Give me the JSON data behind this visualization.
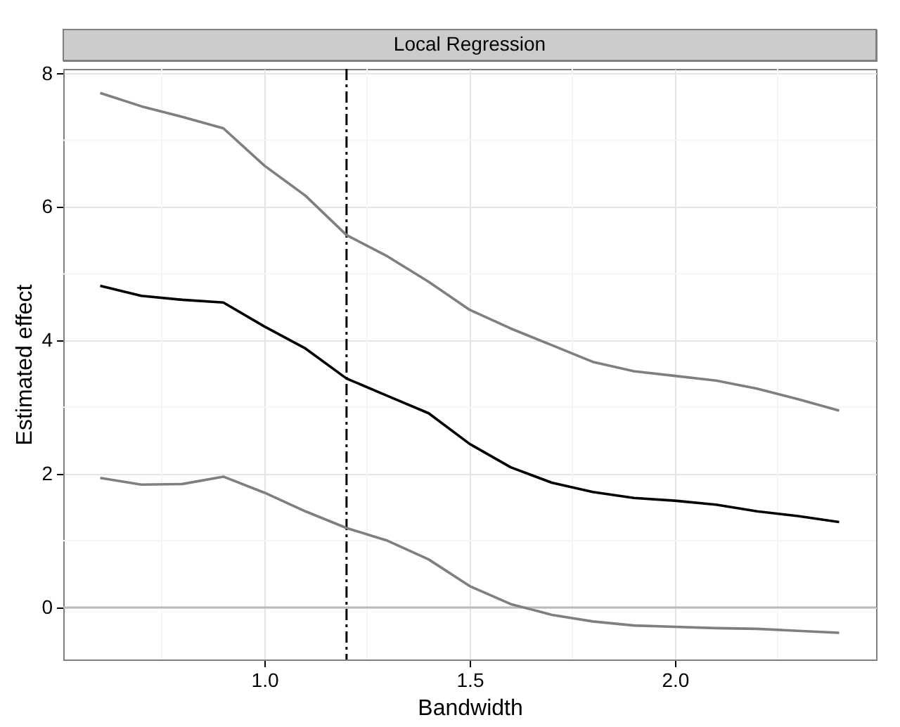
{
  "chart_data": {
    "type": "line",
    "title": "Local Regression",
    "xlabel": "Bandwidth",
    "ylabel": "Estimated effect",
    "x": [
      0.6,
      0.7,
      0.8,
      0.9,
      1.0,
      1.1,
      1.2,
      1.3,
      1.4,
      1.5,
      1.6,
      1.7,
      1.8,
      1.9,
      2.0,
      2.1,
      2.2,
      2.3,
      2.4
    ],
    "series": [
      {
        "color": "#7f7f7f",
        "values": [
          7.71,
          7.51,
          7.35,
          7.18,
          6.62,
          6.17,
          5.58,
          5.26,
          4.88,
          4.46,
          4.18,
          3.93,
          3.68,
          3.54,
          3.47,
          3.4,
          3.28,
          3.12,
          2.95
        ]
      },
      {
        "color": "#000000",
        "values": [
          4.82,
          4.67,
          4.61,
          4.57,
          4.21,
          3.88,
          3.43,
          3.17,
          2.91,
          2.45,
          2.1,
          1.87,
          1.73,
          1.64,
          1.6,
          1.54,
          1.44,
          1.37,
          1.28
        ]
      },
      {
        "color": "#7f7f7f",
        "values": [
          1.94,
          1.84,
          1.85,
          1.96,
          1.72,
          1.44,
          1.19,
          1.0,
          0.72,
          0.32,
          0.05,
          -0.11,
          -0.21,
          -0.27,
          -0.29,
          -0.31,
          -0.32,
          -0.35,
          -0.38
        ]
      }
    ],
    "xlim": [
      0.51,
      2.49
    ],
    "xticks": [
      {
        "value": 1.0,
        "label": "1.0"
      },
      {
        "value": 1.5,
        "label": "1.5"
      },
      {
        "value": 2.0,
        "label": "2.0"
      }
    ],
    "ylim": [
      -0.78,
      8.07
    ],
    "yticks": [
      0,
      2,
      4,
      6,
      8
    ],
    "ref_lines": [
      {
        "axis": "x",
        "value": 1.2,
        "color": "#000000",
        "line_style": "dashdot"
      },
      {
        "axis": "y",
        "value": 0,
        "color": "#bbbbbb",
        "line_style": "solid"
      }
    ],
    "grid": true,
    "line_style": "solid",
    "marker": "none"
  }
}
